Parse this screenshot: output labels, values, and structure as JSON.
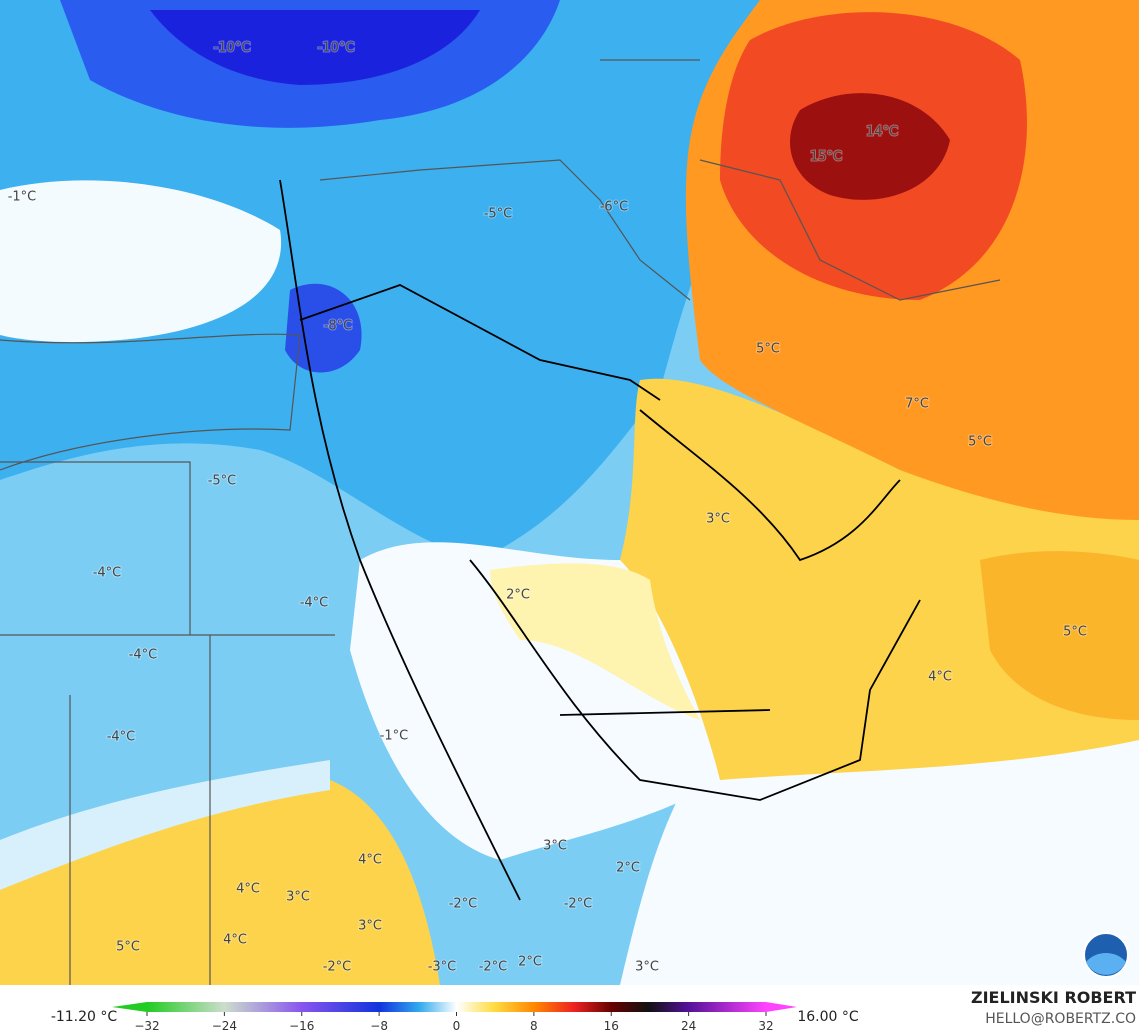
{
  "map": {
    "labels": [
      "-10°C",
      "-10°C",
      "-1°C",
      "15°C",
      "14°C",
      "-5°C",
      "-6°C",
      "-8°C",
      "5°C",
      "7°C",
      "5°C",
      "-5°C",
      "3°C",
      "-4°C",
      "-4°C",
      "2°C",
      "5°C",
      "-4°C",
      "4°C",
      "-4°C",
      "-1°C",
      "4°C",
      "3°C",
      "2°C",
      "4°C",
      "3°C",
      "-2°C",
      "-2°C",
      "3°C",
      "4°C",
      "5°C",
      "-2°C",
      "-3°C",
      "-2°C",
      "2°C",
      "3°C"
    ]
  },
  "colorbar": {
    "min_label": "-11.20 °C",
    "max_label": "16.00 °C",
    "lim": [
      -32,
      32
    ],
    "ticks": [
      {
        "value": -32,
        "label": "−32"
      },
      {
        "value": -24,
        "label": "−24"
      },
      {
        "value": -16,
        "label": "−16"
      },
      {
        "value": -8,
        "label": "−8"
      },
      0,
      8,
      16,
      24,
      32
    ]
  },
  "credits": {
    "name": "ZIELINSKI ROBERT",
    "contact": "HELLO@ROBERTZ.CO"
  }
}
